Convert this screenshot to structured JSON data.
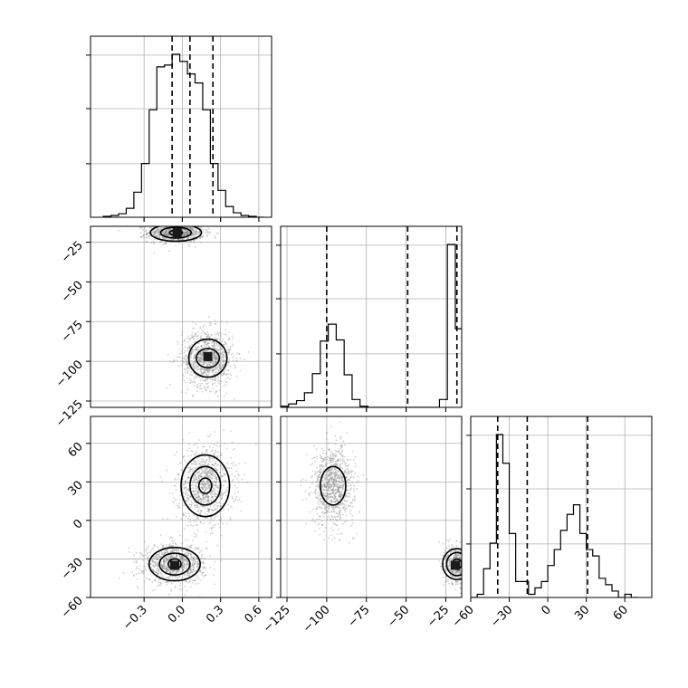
{
  "chart_data": {
    "type": "corner",
    "parameters": [
      {
        "ticks": [
          {
            "value": -0.3,
            "label": "−0.3"
          },
          {
            "value": 0.0,
            "label": "0.0"
          },
          {
            "value": 0.3,
            "label": "0.3"
          },
          {
            "value": 0.6,
            "label": "0.6"
          }
        ],
        "range": [
          -0.72,
          0.7
        ]
      },
      {
        "ticks": [
          {
            "value": -125,
            "label": "−125"
          },
          {
            "value": -100,
            "label": "−100"
          },
          {
            "value": -75,
            "label": "−75"
          },
          {
            "value": -50,
            "label": "−50"
          },
          {
            "value": -25,
            "label": "−25"
          }
        ],
        "range": [
          -129,
          -15
        ]
      },
      {
        "ticks": [
          {
            "value": -60,
            "label": "−60"
          },
          {
            "value": -30,
            "label": "−30"
          },
          {
            "value": 0,
            "label": "0"
          },
          {
            "value": 30,
            "label": "30"
          },
          {
            "value": 60,
            "label": "60"
          }
        ],
        "range": [
          -60,
          81
        ]
      }
    ],
    "histograms": [
      {
        "param": 0,
        "bins_x": [
          -0.62,
          -0.56,
          -0.5,
          -0.44,
          -0.38,
          -0.32,
          -0.26,
          -0.2,
          -0.14,
          -0.08,
          -0.02,
          0.04,
          0.1,
          0.16,
          0.22,
          0.28,
          0.34,
          0.4,
          0.46,
          0.52,
          0.58,
          0.64
        ],
        "counts": [
          1,
          2,
          4,
          10,
          28,
          60,
          120,
          168,
          170,
          182,
          174,
          160,
          150,
          120,
          60,
          30,
          12,
          5,
          2,
          1,
          0
        ],
        "quantiles": [
          -0.08,
          0.06,
          0.24
        ]
      },
      {
        "param": 1,
        "bins_x": [
          -129,
          -124,
          -119,
          -114,
          -109,
          -104,
          -99,
          -94,
          -89,
          -84,
          -79,
          -74,
          -69,
          -64,
          -59,
          -54,
          -49,
          -44,
          -39,
          -34,
          -29,
          -24,
          -19,
          -15
        ],
        "counts": [
          2,
          6,
          12,
          26,
          60,
          118,
          148,
          120,
          58,
          14,
          2,
          0,
          0,
          0,
          0,
          0,
          0,
          0,
          0,
          0,
          14,
          290,
          140
        ],
        "quantiles": [
          -100,
          -49,
          -18
        ]
      },
      {
        "param": 2,
        "bins_x": [
          -60,
          -55,
          -50,
          -45,
          -40,
          -35,
          -30,
          -25,
          -20,
          -15,
          -10,
          -5,
          0,
          5,
          10,
          15,
          20,
          25,
          30,
          35,
          40,
          45,
          50,
          55,
          60,
          65,
          70
        ],
        "counts": [
          0,
          2,
          18,
          34,
          102,
          84,
          40,
          10,
          10,
          2,
          6,
          10,
          20,
          30,
          42,
          52,
          58,
          40,
          30,
          26,
          12,
          8,
          4,
          0,
          2,
          0
        ],
        "quantiles": [
          -39,
          -16,
          31
        ]
      }
    ],
    "scatter_panels": [
      {
        "x_param": 0,
        "y_param": 1,
        "modes": [
          {
            "center": [
              -0.05,
              -19
            ],
            "sd": [
              0.11,
              3.0
            ],
            "n": 950,
            "contour_radii": [
              [
                0.05,
                1.6
              ],
              [
                0.12,
                3.4
              ],
              [
                0.2,
                5.4
              ]
            ],
            "peak": [
              -0.04,
              -19
            ]
          },
          {
            "center": [
              0.2,
              -98
            ],
            "sd": [
              0.1,
              9
            ],
            "n": 950,
            "contour_radii": [
              [
                0.03,
                1.5
              ],
              [
                0.09,
                6
              ],
              [
                0.15,
                12
              ]
            ],
            "peak": [
              0.2,
              -97
            ]
          }
        ]
      },
      {
        "x_param": 0,
        "y_param": 2,
        "modes": [
          {
            "center": [
              0.18,
              27
            ],
            "sd": [
              0.11,
              15
            ],
            "n": 950,
            "contour_radii": [
              [
                0.05,
                6
              ],
              [
                0.12,
                15
              ],
              [
                0.19,
                24
              ]
            ]
          },
          {
            "center": [
              -0.06,
              -34
            ],
            "sd": [
              0.12,
              7.5
            ],
            "n": 950,
            "contour_radii": [
              [
                0.05,
                4
              ],
              [
                0.12,
                8.5
              ],
              [
                0.2,
                13
              ]
            ],
            "peak": [
              -0.06,
              -35
            ]
          }
        ]
      },
      {
        "x_param": 1,
        "y_param": 2,
        "modes": [
          {
            "center": [
              -96,
              27
            ],
            "sd": [
              6.5,
              15
            ],
            "n": 950,
            "contour_radii": [
              [
                8,
                15
              ]
            ]
          },
          {
            "center": [
              -18,
              -34
            ],
            "sd": [
              3.5,
              8
            ],
            "n": 500,
            "contour_radii": [
              [
                3,
                4
              ],
              [
                6.5,
                9
              ],
              [
                9,
                12
              ]
            ],
            "peak": [
              -19,
              -35
            ]
          }
        ]
      }
    ],
    "grid": true,
    "colors": {
      "points": "#7a7a7a",
      "lines": "#000000"
    }
  }
}
